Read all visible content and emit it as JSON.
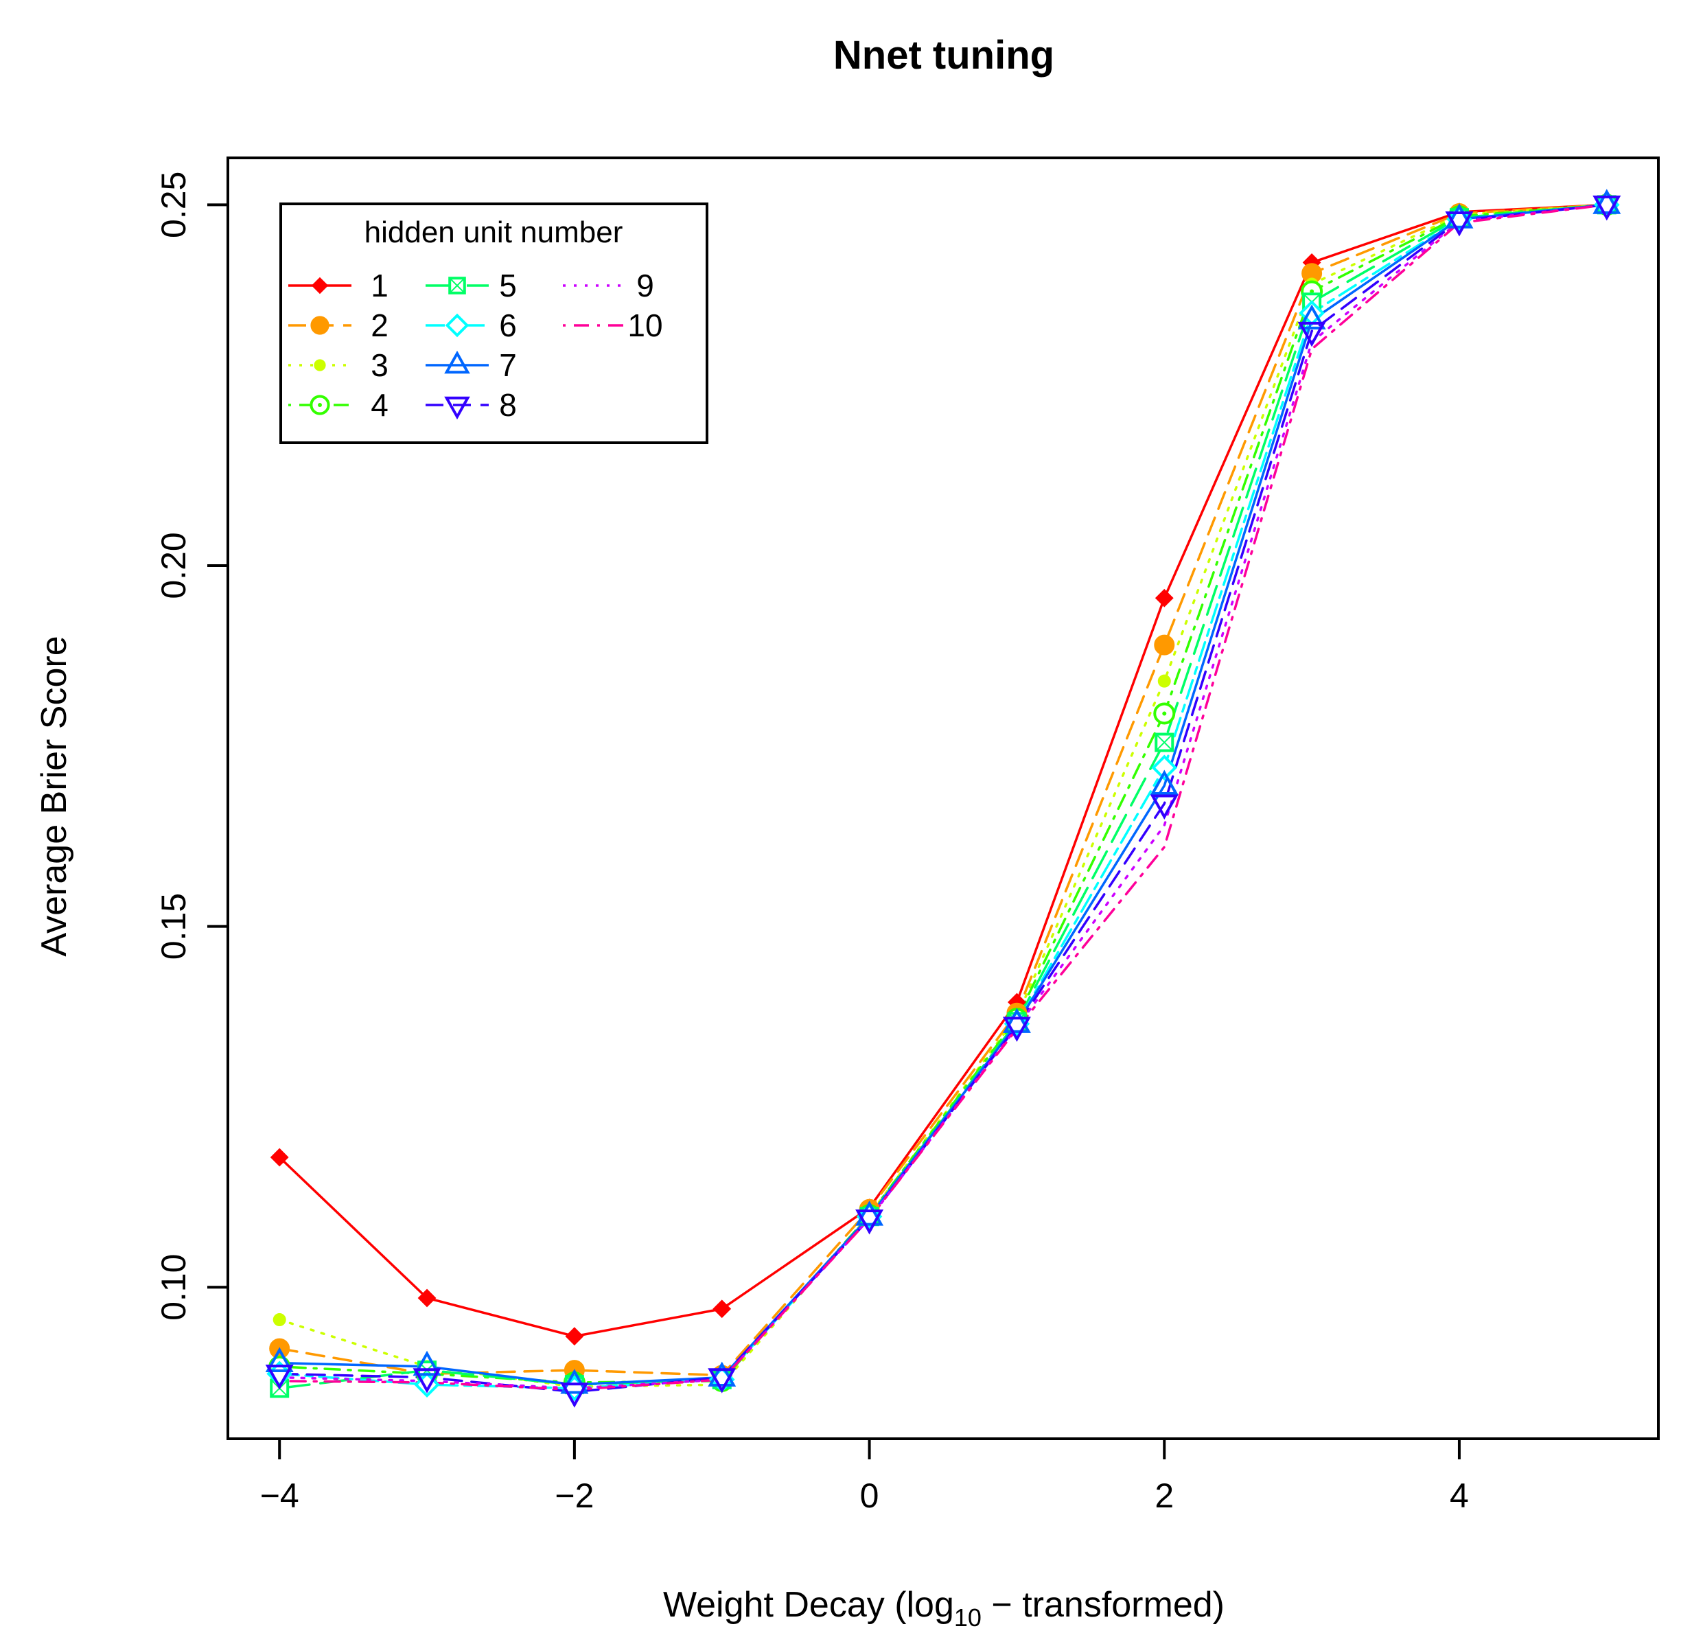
{
  "chart_data": {
    "type": "line",
    "title": "Nnet tuning",
    "xlabel_prefix": "Weight Decay (log",
    "xlabel_subscript": "10",
    "xlabel_suffix": " − transformed)",
    "ylabel": "Average Brier Score",
    "xlim": [
      -4.35,
      5.35
    ],
    "ylim": [
      0.079,
      0.2565
    ],
    "x_ticks": [
      -4,
      -2,
      0,
      2,
      4
    ],
    "x_tick_labels": [
      "−4",
      "−2",
      "0",
      "2",
      "4"
    ],
    "y_ticks": [
      0.1,
      0.15,
      0.2,
      0.25
    ],
    "y_tick_labels": [
      "0.10",
      "0.15",
      "0.20",
      "0.25"
    ],
    "legend_title": "hidden unit number",
    "legend_position": "top-left",
    "x": [
      -4,
      -3,
      -2,
      -1,
      0,
      1,
      2,
      3,
      4,
      5
    ],
    "series": [
      {
        "name": "1",
        "color": "#FF0000",
        "dash": "solid",
        "marker": "diamond-filled",
        "values": [
          0.118,
          0.0985,
          0.0932,
          0.097,
          0.111,
          0.1395,
          0.1955,
          0.242,
          0.249,
          0.25
        ]
      },
      {
        "name": "2",
        "color": "#FF9900",
        "dash": "dashed",
        "marker": "circle-filled",
        "values": [
          0.0915,
          0.088,
          0.0885,
          0.0878,
          0.1108,
          0.138,
          0.189,
          0.2405,
          0.2488,
          0.25
        ]
      },
      {
        "name": "3",
        "color": "#CCFF00",
        "dash": "dotted",
        "marker": "dot-filled",
        "values": [
          0.0955,
          0.089,
          0.0862,
          0.0865,
          0.11,
          0.1375,
          0.184,
          0.239,
          0.2486,
          0.25
        ]
      },
      {
        "name": "4",
        "color": "#33FF00",
        "dash": "dotdash",
        "marker": "circle-dot",
        "values": [
          0.089,
          0.088,
          0.0868,
          0.087,
          0.11,
          0.1372,
          0.1795,
          0.238,
          0.2484,
          0.25
        ]
      },
      {
        "name": "5",
        "color": "#00FF66",
        "dash": "longdash",
        "marker": "square-x",
        "values": [
          0.086,
          0.0885,
          0.0865,
          0.0872,
          0.1098,
          0.1368,
          0.1755,
          0.2365,
          0.2482,
          0.25
        ]
      },
      {
        "name": "6",
        "color": "#00FFFF",
        "dash": "twodash",
        "marker": "diamond-open",
        "values": [
          0.088,
          0.0865,
          0.086,
          0.0872,
          0.1098,
          0.1365,
          0.172,
          0.235,
          0.248,
          0.25
        ]
      },
      {
        "name": "7",
        "color": "#0066FF",
        "dash": "solid",
        "marker": "triangle-up",
        "values": [
          0.0895,
          0.089,
          0.0865,
          0.0875,
          0.1098,
          0.1365,
          0.1695,
          0.234,
          0.248,
          0.25
        ]
      },
      {
        "name": "8",
        "color": "#3300FF",
        "dash": "dashed",
        "marker": "triangle-down",
        "values": [
          0.088,
          0.0875,
          0.0855,
          0.0875,
          0.1095,
          0.1362,
          0.167,
          0.2325,
          0.2478,
          0.25
        ]
      },
      {
        "name": "9",
        "color": "#CC00FF",
        "dash": "dotted",
        "marker": "none",
        "values": [
          0.0875,
          0.087,
          0.086,
          0.0872,
          0.1095,
          0.136,
          0.164,
          0.231,
          0.2477,
          0.25
        ]
      },
      {
        "name": "10",
        "color": "#FF0099",
        "dash": "dotdash",
        "marker": "none",
        "values": [
          0.087,
          0.0868,
          0.0858,
          0.0872,
          0.1095,
          0.1358,
          0.161,
          0.23,
          0.2475,
          0.25
        ]
      }
    ]
  }
}
